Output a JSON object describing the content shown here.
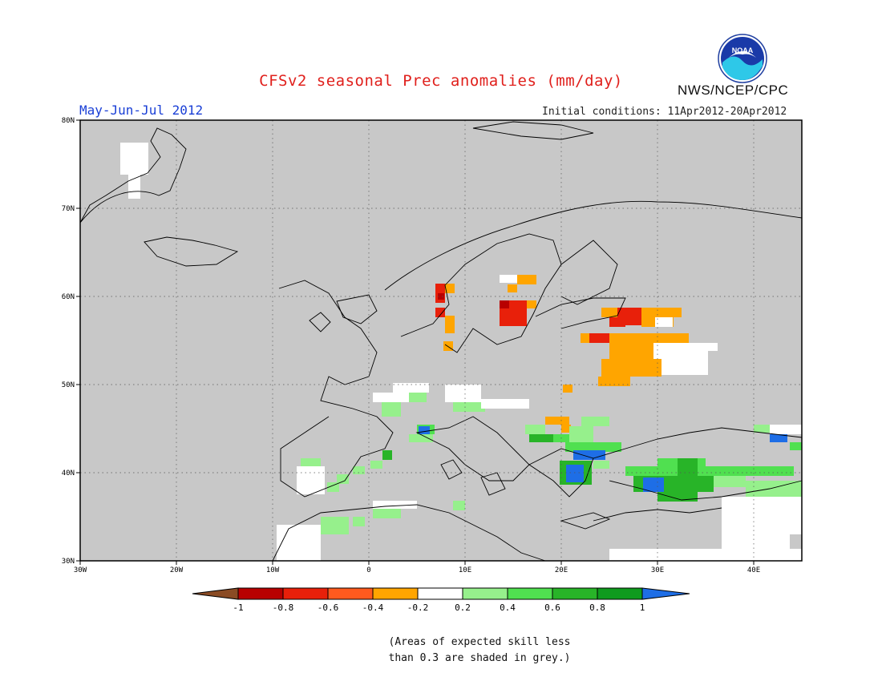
{
  "header": {
    "title": "CFSv2 seasonal Prec anomalies (mm/day)",
    "period": "May-Jun-Jul 2012",
    "initial_conditions": "Initial conditions: 11Apr2012-20Apr2012",
    "agency": "NWS/NCEP/CPC",
    "logo_text": "NOAA"
  },
  "map": {
    "longitude_ticks": [
      "30W",
      "20W",
      "10W",
      "0",
      "10E",
      "20E",
      "30E",
      "40E"
    ],
    "latitude_ticks": [
      "30N",
      "40N",
      "50N",
      "60N",
      "70N",
      "80N"
    ],
    "background_color": "#c8c8c8",
    "grid": true
  },
  "colorbar": {
    "tick_labels": [
      "-1",
      "-0.8",
      "-0.6",
      "-0.4",
      "-0.2",
      "0.2",
      "0.4",
      "0.6",
      "0.8",
      "1"
    ],
    "colors": [
      "#8a4b24",
      "#b80000",
      "#e8200a",
      "#ff5a1e",
      "#ffa500",
      "#ffffff",
      "#96f08c",
      "#50e050",
      "#28b428",
      "#0f9b1e",
      "#1e6ee6"
    ]
  },
  "footnote": {
    "line1": "(Areas of expected skill less",
    "line2": "than 0.3 are shaded in grey.)"
  }
}
